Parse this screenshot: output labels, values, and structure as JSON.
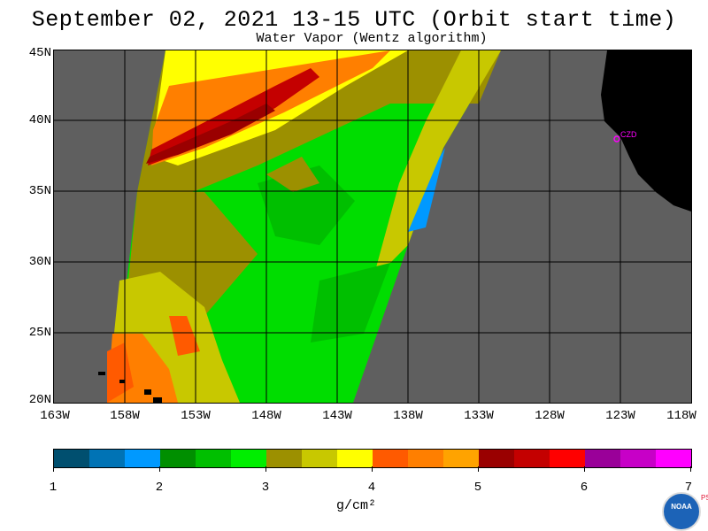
{
  "header": {
    "title": "September 02, 2021  13-15 UTC  (Orbit start time)",
    "subtitle": "Water Vapor (Wentz algorithm)"
  },
  "map": {
    "lat_labels": [
      "45N",
      "40N",
      "35N",
      "30N",
      "25N",
      "20N"
    ],
    "lon_labels": [
      "163W",
      "158W",
      "153W",
      "148W",
      "143W",
      "138W",
      "133W",
      "128W",
      "123W",
      "118W"
    ],
    "station_label": "CZD",
    "colors": {
      "no_data": "#5f5f5f",
      "land": "#000000",
      "grid": "#000000",
      "station": "#ff00ff"
    }
  },
  "colorbar": {
    "colors": [
      "#004f6f",
      "#0073b5",
      "#0099ff",
      "#008f00",
      "#00bf00",
      "#00ee00",
      "#9c9000",
      "#c8c800",
      "#ffff00",
      "#ff5a00",
      "#ff7f00",
      "#ffa300",
      "#9a0000",
      "#c40000",
      "#ff0000",
      "#9a0099",
      "#c700c7",
      "#ff00ff"
    ],
    "tick_labels": [
      "1",
      "2",
      "3",
      "4",
      "5",
      "6",
      "7"
    ],
    "units": "g/cm²"
  },
  "logo": {
    "agency": "NOAA",
    "lab": "PSL"
  }
}
